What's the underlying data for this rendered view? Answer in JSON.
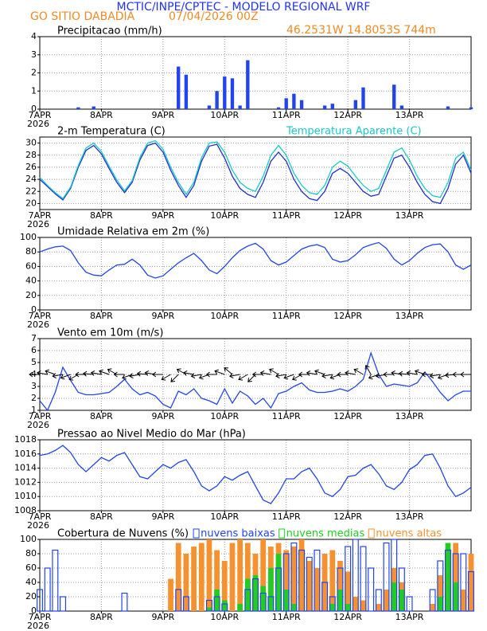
{
  "header": {
    "title": "MCTIC/INPE/CPTEC - MODELO REGIONAL WRF",
    "station": "GO SITIO DABADIA",
    "run": "07/04/2026 00Z",
    "coordinates": "46.2531W 14.8053S 744m"
  },
  "chart_data": [
    {
      "type": "bar",
      "title": "Precipitacao (mm/h)",
      "color": "#2244ee",
      "grid": true,
      "year_label": "2026",
      "x": [
        0,
        0.125,
        0.25,
        0.375,
        0.5,
        0.625,
        0.75,
        0.875,
        1,
        1.125,
        1.25,
        1.375,
        1.5,
        1.625,
        1.75,
        1.875,
        2,
        2.125,
        2.25,
        2.375,
        2.5,
        2.625,
        2.75,
        2.875,
        3,
        3.125,
        3.25,
        3.375,
        3.5,
        3.625,
        3.75,
        3.875,
        4,
        4.125,
        4.25,
        4.375,
        4.5,
        4.625,
        4.75,
        4.875,
        5,
        5.125,
        5.25,
        5.375,
        5.5,
        5.625,
        5.75,
        5.875,
        6,
        6.125,
        6.25,
        6.375,
        6.5,
        6.625,
        6.75,
        6.875,
        7
      ],
      "values": [
        0,
        0,
        0,
        0,
        0,
        0.1,
        0,
        0.15,
        0,
        0,
        0,
        0,
        0,
        0,
        0,
        0,
        0,
        0,
        2.35,
        1.9,
        0,
        0,
        0.2,
        1.0,
        1.8,
        1.7,
        0.2,
        2.7,
        0,
        0,
        0,
        0.1,
        0.6,
        0.85,
        0.5,
        0,
        0,
        0.2,
        0.3,
        0,
        0,
        0.5,
        1.2,
        0,
        0,
        0,
        1.35,
        0.2,
        0,
        0,
        0,
        0,
        0,
        0.15,
        0,
        0,
        0.1
      ],
      "xlim": [
        0,
        7
      ],
      "xticks": [
        {
          "value": 0,
          "label": "7APR"
        },
        {
          "value": 1,
          "label": "8APR"
        },
        {
          "value": 2,
          "label": "9APR"
        },
        {
          "value": 3,
          "label": "10APR"
        },
        {
          "value": 4,
          "label": "11APR"
        },
        {
          "value": 5,
          "label": "12APR"
        },
        {
          "value": 6,
          "label": "13APR"
        }
      ],
      "ylim": [
        0,
        4
      ],
      "yticks": [
        0,
        1,
        2,
        3,
        4
      ]
    },
    {
      "type": "line",
      "grid": true,
      "year_label": "2026",
      "x": [
        0,
        0.125,
        0.25,
        0.375,
        0.5,
        0.625,
        0.75,
        0.875,
        1,
        1.125,
        1.25,
        1.375,
        1.5,
        1.625,
        1.75,
        1.875,
        2,
        2.125,
        2.25,
        2.375,
        2.5,
        2.625,
        2.75,
        2.875,
        3,
        3.125,
        3.25,
        3.375,
        3.5,
        3.625,
        3.75,
        3.875,
        4,
        4.125,
        4.25,
        4.375,
        4.5,
        4.625,
        4.75,
        4.875,
        5,
        5.125,
        5.25,
        5.375,
        5.5,
        5.625,
        5.75,
        5.875,
        6,
        6.125,
        6.25,
        6.375,
        6.5,
        6.625,
        6.75,
        6.875,
        7
      ],
      "series": [
        {
          "name": "2-m Temperatura (C)",
          "color": "#1f2fd0",
          "values": [
            24.0,
            22.8,
            21.6,
            20.6,
            22.5,
            26.0,
            28.8,
            29.6,
            28.2,
            25.8,
            23.5,
            21.8,
            23.5,
            27.2,
            29.6,
            30.0,
            28.5,
            25.5,
            23.0,
            21.0,
            23.0,
            27.0,
            29.5,
            29.8,
            27.5,
            24.5,
            22.5,
            21.5,
            21.0,
            23.5,
            27.0,
            28.5,
            27.0,
            24.0,
            22.0,
            20.8,
            20.5,
            22.0,
            25.0,
            25.8,
            25.0,
            23.5,
            22.0,
            21.2,
            21.5,
            24.5,
            27.5,
            28.0,
            26.0,
            23.5,
            21.5,
            20.3,
            20.0,
            22.5,
            26.5,
            28.0,
            25.0
          ]
        },
        {
          "name": "Temperatura Aparente (C)",
          "color": "#19c8c8",
          "values": [
            24.3,
            23.0,
            21.8,
            20.8,
            22.7,
            26.3,
            29.2,
            30.0,
            28.6,
            26.2,
            23.9,
            22.1,
            23.8,
            27.6,
            30.0,
            30.4,
            29.0,
            26.0,
            23.5,
            21.5,
            23.5,
            27.6,
            30.0,
            30.2,
            28.5,
            25.5,
            23.5,
            22.5,
            22.0,
            24.5,
            28.0,
            29.6,
            28.0,
            25.0,
            23.0,
            21.8,
            21.5,
            23.0,
            26.0,
            27.0,
            26.2,
            24.5,
            23.0,
            22.0,
            22.5,
            25.5,
            28.5,
            29.2,
            27.2,
            24.5,
            22.5,
            21.3,
            21.0,
            23.5,
            27.5,
            28.5,
            25.5
          ]
        }
      ],
      "xlim": [
        0,
        7
      ],
      "xticks": [
        {
          "value": 0,
          "label": "7APR"
        },
        {
          "value": 1,
          "label": "8APR"
        },
        {
          "value": 2,
          "label": "9APR"
        },
        {
          "value": 3,
          "label": "10APR"
        },
        {
          "value": 4,
          "label": "11APR"
        },
        {
          "value": 5,
          "label": "12APR"
        },
        {
          "value": 6,
          "label": "13APR"
        }
      ],
      "ylim": [
        19,
        31
      ],
      "yticks": [
        20,
        22,
        24,
        26,
        28,
        30
      ]
    },
    {
      "type": "line",
      "title": "Umidade Relativa em 2m (%)",
      "color": "#2244ee",
      "grid": true,
      "year_label": "2026",
      "x": [
        0,
        0.125,
        0.25,
        0.375,
        0.5,
        0.625,
        0.75,
        0.875,
        1,
        1.125,
        1.25,
        1.375,
        1.5,
        1.625,
        1.75,
        1.875,
        2,
        2.125,
        2.25,
        2.375,
        2.5,
        2.625,
        2.75,
        2.875,
        3,
        3.125,
        3.25,
        3.375,
        3.5,
        3.625,
        3.75,
        3.875,
        4,
        4.125,
        4.25,
        4.375,
        4.5,
        4.625,
        4.75,
        4.875,
        5,
        5.125,
        5.25,
        5.375,
        5.5,
        5.625,
        5.75,
        5.875,
        6,
        6.125,
        6.25,
        6.375,
        6.5,
        6.625,
        6.75,
        6.875,
        7
      ],
      "values": [
        80,
        84,
        87,
        88,
        82,
        65,
        52,
        48,
        47,
        55,
        62,
        63,
        70,
        62,
        48,
        44,
        47,
        56,
        65,
        72,
        78,
        68,
        55,
        50,
        60,
        72,
        82,
        88,
        92,
        84,
        68,
        62,
        66,
        75,
        84,
        88,
        90,
        86,
        70,
        66,
        68,
        76,
        86,
        90,
        93,
        85,
        70,
        62,
        68,
        78,
        86,
        90,
        91,
        80,
        62,
        56,
        62
      ],
      "xlim": [
        0,
        7
      ],
      "xticks": [
        {
          "value": 0,
          "label": "7APR"
        },
        {
          "value": 1,
          "label": "8APR"
        },
        {
          "value": 2,
          "label": "9APR"
        },
        {
          "value": 3,
          "label": "10APR"
        },
        {
          "value": 4,
          "label": "11APR"
        },
        {
          "value": 5,
          "label": "12APR"
        },
        {
          "value": 6,
          "label": "13APR"
        }
      ],
      "ylim": [
        0,
        100
      ],
      "yticks": [
        0,
        20,
        40,
        60,
        80,
        100
      ]
    },
    {
      "type": "line",
      "title": "Vento em 10m (m/s)",
      "color": "#2244ee",
      "grid": true,
      "year_label": "2026",
      "x": [
        0,
        0.125,
        0.25,
        0.375,
        0.5,
        0.625,
        0.75,
        0.875,
        1,
        1.125,
        1.25,
        1.375,
        1.5,
        1.625,
        1.75,
        1.875,
        2,
        2.125,
        2.25,
        2.375,
        2.5,
        2.625,
        2.75,
        2.875,
        3,
        3.125,
        3.25,
        3.375,
        3.5,
        3.625,
        3.75,
        3.875,
        4,
        4.125,
        4.25,
        4.375,
        4.5,
        4.625,
        4.75,
        4.875,
        5,
        5.125,
        5.25,
        5.375,
        5.5,
        5.625,
        5.75,
        5.875,
        6,
        6.125,
        6.25,
        6.375,
        6.5,
        6.625,
        6.75,
        6.875,
        7
      ],
      "values": [
        1.8,
        1.0,
        2.5,
        4.6,
        3.5,
        2.5,
        2.3,
        2.3,
        2.4,
        2.5,
        3.0,
        3.6,
        2.8,
        2.3,
        2.5,
        2.2,
        1.5,
        1.2,
        2.6,
        2.3,
        2.8,
        2.0,
        1.8,
        1.5,
        2.8,
        1.6,
        2.6,
        2.2,
        1.5,
        2.0,
        1.2,
        2.4,
        2.6,
        3.0,
        3.3,
        2.7,
        2.5,
        2.5,
        2.6,
        2.8,
        2.6,
        3.0,
        3.6,
        5.8,
        4.0,
        3.0,
        3.2,
        3.1,
        3.0,
        3.3,
        4.2,
        3.4,
        2.5,
        1.8,
        2.3,
        2.6,
        2.6
      ],
      "wind_direction": [
        90,
        100,
        110,
        80,
        70,
        60,
        90,
        95,
        100,
        110,
        120,
        90,
        70,
        80,
        95,
        100,
        90,
        60,
        45,
        120,
        100,
        80,
        70,
        90,
        110,
        130,
        80,
        60,
        45,
        90,
        100,
        120,
        80,
        70,
        60,
        90,
        100,
        110,
        80,
        70,
        90,
        100,
        120,
        150,
        70,
        80,
        90,
        100,
        95,
        100,
        110,
        90,
        80,
        70,
        85,
        90,
        90
      ],
      "xlim": [
        0,
        7
      ],
      "xticks": [
        {
          "value": 0,
          "label": "7APR"
        },
        {
          "value": 1,
          "label": "8APR"
        },
        {
          "value": 2,
          "label": "9APR"
        },
        {
          "value": 3,
          "label": "10APR"
        },
        {
          "value": 4,
          "label": "11APR"
        },
        {
          "value": 5,
          "label": "12APR"
        },
        {
          "value": 6,
          "label": "13APR"
        }
      ],
      "ylim": [
        1,
        7
      ],
      "yticks": [
        1,
        2,
        3,
        4,
        5,
        6,
        7
      ]
    },
    {
      "type": "line",
      "title": "Pressao ao Nivel Medio do Mar (hPa)",
      "color": "#2244ee",
      "grid": true,
      "year_label": "2026",
      "x": [
        0,
        0.125,
        0.25,
        0.375,
        0.5,
        0.625,
        0.75,
        0.875,
        1,
        1.125,
        1.25,
        1.375,
        1.5,
        1.625,
        1.75,
        1.875,
        2,
        2.125,
        2.25,
        2.375,
        2.5,
        2.625,
        2.75,
        2.875,
        3,
        3.125,
        3.25,
        3.375,
        3.5,
        3.625,
        3.75,
        3.875,
        4,
        4.125,
        4.25,
        4.375,
        4.5,
        4.625,
        4.75,
        4.875,
        5,
        5.125,
        5.25,
        5.375,
        5.5,
        5.625,
        5.75,
        5.875,
        6,
        6.125,
        6.25,
        6.375,
        6.5,
        6.625,
        6.75,
        6.875,
        7
      ],
      "values": [
        1015.8,
        1016.0,
        1016.5,
        1017.2,
        1016.2,
        1014.5,
        1013.5,
        1014.5,
        1015.5,
        1015.0,
        1015.8,
        1016.2,
        1014.5,
        1012.8,
        1012.5,
        1013.5,
        1014.5,
        1014.0,
        1014.8,
        1015.2,
        1013.5,
        1011.5,
        1010.8,
        1011.5,
        1012.8,
        1012.3,
        1013.0,
        1013.5,
        1011.5,
        1009.5,
        1009.0,
        1010.5,
        1012.5,
        1012.5,
        1013.5,
        1014.0,
        1012.5,
        1010.5,
        1010.0,
        1011.0,
        1012.8,
        1013.0,
        1014.0,
        1014.5,
        1013.2,
        1011.5,
        1011.0,
        1012.0,
        1013.8,
        1014.5,
        1015.8,
        1016.0,
        1014.0,
        1011.5,
        1010.0,
        1010.5,
        1011.3
      ],
      "xlim": [
        0,
        7
      ],
      "xticks": [
        {
          "value": 0,
          "label": "7APR"
        },
        {
          "value": 1,
          "label": "8APR"
        },
        {
          "value": 2,
          "label": "9APR"
        },
        {
          "value": 3,
          "label": "10APR"
        },
        {
          "value": 4,
          "label": "11APR"
        },
        {
          "value": 5,
          "label": "12APR"
        },
        {
          "value": 6,
          "label": "13APR"
        }
      ],
      "ylim": [
        1008,
        1018
      ],
      "yticks": [
        1008,
        1010,
        1012,
        1014,
        1016,
        1018
      ]
    },
    {
      "type": "bar",
      "title": "Cobertura de Nuvens (%)",
      "grid": true,
      "year_label": "2026",
      "x": [
        0,
        0.125,
        0.25,
        0.375,
        0.5,
        0.625,
        0.75,
        0.875,
        1,
        1.125,
        1.25,
        1.375,
        1.5,
        1.625,
        1.75,
        1.875,
        2,
        2.125,
        2.25,
        2.375,
        2.5,
        2.625,
        2.75,
        2.875,
        3,
        3.125,
        3.25,
        3.375,
        3.5,
        3.625,
        3.75,
        3.875,
        4,
        4.125,
        4.25,
        4.375,
        4.5,
        4.625,
        4.75,
        4.875,
        5,
        5.125,
        5.25,
        5.375,
        5.5,
        5.625,
        5.75,
        5.875,
        6,
        6.125,
        6.25,
        6.375,
        6.5,
        6.625,
        6.75,
        6.875,
        7
      ],
      "series": [
        {
          "name": "nuvens baixas",
          "color": "#2244ee",
          "filled": false,
          "values": [
            30,
            60,
            85,
            20,
            0,
            0,
            0,
            0,
            0,
            0,
            0,
            25,
            0,
            0,
            0,
            0,
            0,
            0,
            30,
            20,
            0,
            0,
            15,
            20,
            10,
            0,
            0,
            30,
            45,
            25,
            20,
            60,
            80,
            95,
            85,
            75,
            85,
            40,
            20,
            60,
            90,
            100,
            90,
            60,
            30,
            95,
            100,
            60,
            20,
            0,
            0,
            30,
            70,
            85,
            80,
            80,
            55
          ]
        },
        {
          "name": "nuvens medias",
          "color": "#22cc22",
          "filled": true,
          "values": [
            0,
            0,
            0,
            0,
            0,
            0,
            0,
            0,
            0,
            0,
            0,
            0,
            0,
            0,
            0,
            0,
            0,
            0,
            0,
            0,
            0,
            0,
            5,
            30,
            15,
            0,
            10,
            45,
            50,
            35,
            60,
            80,
            30,
            10,
            0,
            0,
            0,
            0,
            10,
            30,
            10,
            0,
            0,
            0,
            0,
            0,
            40,
            30,
            0,
            0,
            0,
            0,
            20,
            95,
            40,
            0,
            0
          ]
        },
        {
          "name": "nuvens altas",
          "color": "#f5922f",
          "filled": true,
          "values": [
            0,
            0,
            0,
            0,
            0,
            0,
            0,
            0,
            0,
            0,
            0,
            0,
            0,
            0,
            0,
            0,
            0,
            45,
            95,
            80,
            90,
            95,
            100,
            85,
            70,
            95,
            100,
            95,
            80,
            100,
            90,
            95,
            85,
            90,
            100,
            70,
            60,
            80,
            85,
            70,
            55,
            20,
            15,
            0,
            10,
            30,
            60,
            40,
            0,
            0,
            0,
            10,
            50,
            75,
            95,
            30,
            80
          ]
        }
      ],
      "xlim": [
        0,
        7
      ],
      "xticks": [
        {
          "value": 0,
          "label": "7APR"
        },
        {
          "value": 1,
          "label": "8APR"
        },
        {
          "value": 2,
          "label": "9APR"
        },
        {
          "value": 3,
          "label": "10APR"
        },
        {
          "value": 4,
          "label": "11APR"
        },
        {
          "value": 5,
          "label": "12APR"
        },
        {
          "value": 6,
          "label": "13APR"
        }
      ],
      "ylim": [
        0,
        100
      ],
      "yticks": [
        0,
        20,
        40,
        60,
        80,
        100
      ]
    }
  ]
}
